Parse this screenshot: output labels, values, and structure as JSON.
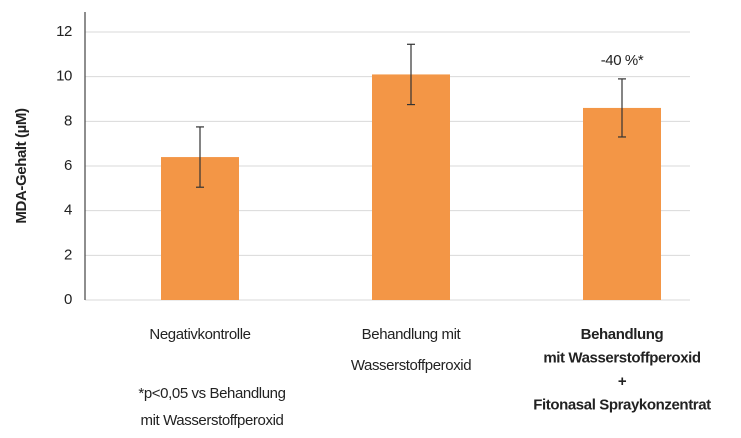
{
  "chart_data": {
    "type": "bar",
    "ylabel": "MDA-Gehalt (µM)",
    "categories": [
      [
        "Negativkontrolle"
      ],
      [
        "Behandlung mit",
        "Wasserstoffperoxid"
      ],
      [
        "Behandlung",
        "mit Wasserstoffperoxid",
        "+",
        "Fitonasal Spraykonzentrat"
      ]
    ],
    "bold_category": 2,
    "values": [
      6.4,
      10.1,
      8.6
    ],
    "errors": [
      1.35,
      1.35,
      1.3
    ],
    "color": "#f39646",
    "ylim": [
      0,
      12
    ],
    "yticks": [
      0,
      2,
      4,
      6,
      8,
      10,
      12
    ],
    "grid": true,
    "annotations": [
      {
        "category": 2,
        "text": "-40 %*"
      }
    ],
    "footnote": [
      "*p<0,05 vs Behandlung",
      "mit Wasserstoffperoxid"
    ]
  }
}
